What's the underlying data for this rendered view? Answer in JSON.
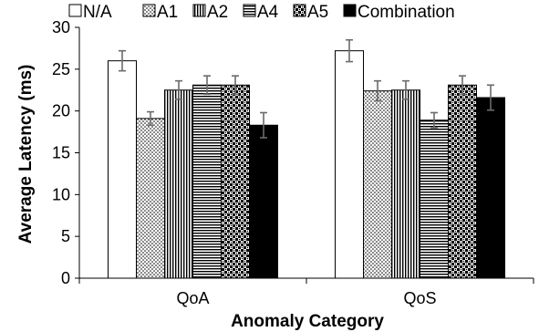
{
  "chart_data": {
    "type": "bar",
    "title": "",
    "xlabel": "Anomaly Category",
    "ylabel": "Average Latency (ms)",
    "ylim": [
      0,
      30
    ],
    "yticks": [
      "0",
      "5",
      "10",
      "15",
      "20",
      "25",
      "30"
    ],
    "grid": false,
    "legend": "top",
    "categories": [
      "QoA",
      "QoS"
    ],
    "series": [
      {
        "name": "N/A",
        "pattern": "solid-white",
        "values": [
          26.0,
          27.2
        ],
        "errors": [
          1.2,
          1.3
        ]
      },
      {
        "name": "A1",
        "pattern": "dots",
        "values": [
          19.1,
          22.4
        ],
        "errors": [
          0.8,
          1.2
        ]
      },
      {
        "name": "A2",
        "pattern": "vertical-lines",
        "values": [
          22.5,
          22.5
        ],
        "errors": [
          1.1,
          1.1
        ]
      },
      {
        "name": "A4",
        "pattern": "horizontal-lines",
        "values": [
          23.1,
          18.9
        ],
        "errors": [
          1.1,
          0.9
        ]
      },
      {
        "name": "A5",
        "pattern": "checker",
        "values": [
          23.1,
          23.1
        ],
        "errors": [
          1.1,
          1.1
        ]
      },
      {
        "name": "Combination",
        "pattern": "solid-black",
        "values": [
          18.3,
          21.6
        ],
        "errors": [
          1.5,
          1.5
        ]
      }
    ]
  }
}
